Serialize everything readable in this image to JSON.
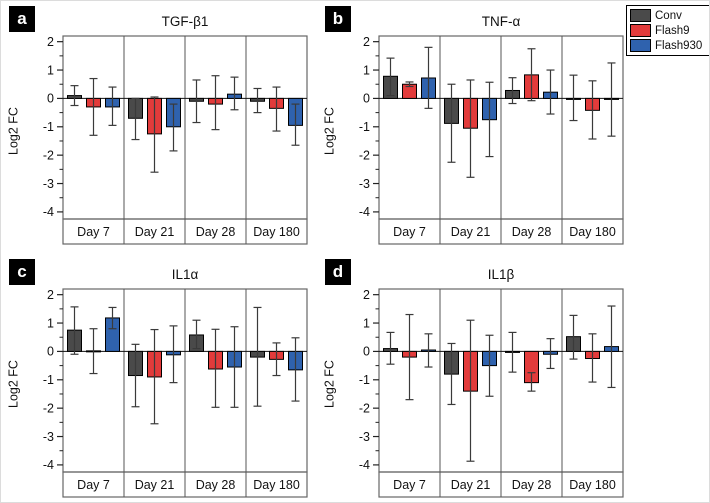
{
  "figure": {
    "background": "#ffffff",
    "legend": {
      "items": [
        {
          "label": "Conv",
          "color": "#4a4a4a"
        },
        {
          "label": "Flash9",
          "color": "#e23b3b"
        },
        {
          "label": "Flash930",
          "color": "#2f62ae"
        }
      ]
    }
  },
  "chart_data": [
    {
      "type": "bar",
      "panel_label": "a",
      "title": "TGF-β1",
      "ylabel": "Log2 FC",
      "ylim": [
        -4.25,
        2.2
      ],
      "yticks": [
        2,
        1,
        0,
        -1,
        -2,
        -3,
        -4
      ],
      "minor_yticks": [
        1.5,
        0.5,
        -0.5,
        -1.5,
        -2.5,
        -3.5
      ],
      "categories": [
        "Day 7",
        "Day 21",
        "Day 28",
        "Day 180"
      ],
      "grid": false,
      "series": [
        {
          "name": "Conv",
          "color": "#4a4a4a",
          "values": [
            0.1,
            -0.7,
            -0.1,
            -0.1
          ],
          "err_low": [
            -0.25,
            -1.45,
            -0.85,
            -0.5
          ],
          "err_high": [
            0.45,
            0.0,
            0.65,
            0.35
          ]
        },
        {
          "name": "Flash9",
          "color": "#e23b3b",
          "values": [
            -0.3,
            -1.25,
            -0.2,
            -0.35
          ],
          "err_low": [
            -1.3,
            -2.6,
            -1.1,
            -1.15
          ],
          "err_high": [
            0.7,
            0.05,
            0.8,
            0.4
          ]
        },
        {
          "name": "Flash930",
          "color": "#2f62ae",
          "values": [
            -0.3,
            -1.0,
            0.15,
            -0.95
          ],
          "err_low": [
            -0.95,
            -1.85,
            -0.4,
            -1.65
          ],
          "err_high": [
            0.4,
            -0.2,
            0.75,
            -0.2
          ]
        }
      ]
    },
    {
      "type": "bar",
      "panel_label": "b",
      "title": "TNF-α",
      "ylabel": "Log2 FC",
      "ylim": [
        -4.25,
        2.2
      ],
      "yticks": [
        2,
        1,
        0,
        -1,
        -2,
        -3,
        -4
      ],
      "minor_yticks": [
        1.5,
        0.5,
        -0.5,
        -1.5,
        -2.5,
        -3.5
      ],
      "categories": [
        "Day 7",
        "Day 21",
        "Day 28",
        "Day 180"
      ],
      "grid": false,
      "series": [
        {
          "name": "Conv",
          "color": "#4a4a4a",
          "values": [
            0.78,
            -0.88,
            0.28,
            0.0
          ],
          "err_low": [
            0.1,
            -2.25,
            -0.18,
            -0.78
          ],
          "err_high": [
            1.42,
            0.5,
            0.73,
            0.82
          ]
        },
        {
          "name": "Flash9",
          "color": "#e23b3b",
          "values": [
            0.5,
            -1.05,
            0.83,
            -0.42
          ],
          "err_low": [
            0.42,
            -2.78,
            -0.08,
            -1.43
          ],
          "err_high": [
            0.58,
            0.65,
            1.75,
            0.62
          ]
        },
        {
          "name": "Flash930",
          "color": "#2f62ae",
          "values": [
            0.72,
            -0.75,
            0.22,
            -0.03
          ],
          "err_low": [
            -0.35,
            -2.05,
            -0.55,
            -1.33
          ],
          "err_high": [
            1.8,
            0.57,
            1.0,
            1.25
          ]
        }
      ]
    },
    {
      "type": "bar",
      "panel_label": "c",
      "title": "IL1α",
      "ylabel": "Log2 FC",
      "ylim": [
        -4.25,
        2.2
      ],
      "yticks": [
        2,
        1,
        0,
        -1,
        -2,
        -3,
        -4
      ],
      "minor_yticks": [
        1.5,
        0.5,
        -0.5,
        -1.5,
        -2.5,
        -3.5
      ],
      "categories": [
        "Day 7",
        "Day 21",
        "Day 28",
        "Day 180"
      ],
      "grid": false,
      "series": [
        {
          "name": "Conv",
          "color": "#4a4a4a",
          "values": [
            0.75,
            -0.85,
            0.58,
            -0.2
          ],
          "err_low": [
            -0.1,
            -1.95,
            0.1,
            -1.93
          ],
          "err_high": [
            1.57,
            0.25,
            1.1,
            1.55
          ]
        },
        {
          "name": "Flash9",
          "color": "#e23b3b",
          "values": [
            0.02,
            -0.9,
            -0.62,
            -0.28
          ],
          "err_low": [
            -0.78,
            -2.55,
            -1.97,
            -0.85
          ],
          "err_high": [
            0.8,
            0.77,
            0.78,
            0.3
          ]
        },
        {
          "name": "Flash930",
          "color": "#2f62ae",
          "values": [
            1.18,
            -0.12,
            -0.55,
            -0.65
          ],
          "err_low": [
            0.8,
            -1.1,
            -1.97,
            -1.75
          ],
          "err_high": [
            1.55,
            0.9,
            0.87,
            0.48
          ]
        }
      ]
    },
    {
      "type": "bar",
      "panel_label": "d",
      "title": "IL1β",
      "ylabel": "Log2 FC",
      "ylim": [
        -4.25,
        2.2
      ],
      "yticks": [
        2,
        1,
        0,
        -1,
        -2,
        -3,
        -4
      ],
      "minor_yticks": [
        1.5,
        0.5,
        -0.5,
        -1.5,
        -2.5,
        -3.5
      ],
      "categories": [
        "Day 7",
        "Day 21",
        "Day 28",
        "Day 180"
      ],
      "grid": false,
      "series": [
        {
          "name": "Conv",
          "color": "#4a4a4a",
          "values": [
            0.1,
            -0.8,
            -0.02,
            0.52
          ],
          "err_low": [
            -0.45,
            -1.87,
            -0.73,
            -0.27
          ],
          "err_high": [
            0.67,
            0.28,
            0.67,
            1.27
          ]
        },
        {
          "name": "Flash9",
          "color": "#e23b3b",
          "values": [
            -0.2,
            -1.4,
            -1.1,
            -0.25
          ],
          "err_low": [
            -1.7,
            -3.87,
            -1.4,
            -1.08
          ],
          "err_high": [
            1.3,
            1.1,
            -0.75,
            0.62
          ]
        },
        {
          "name": "Flash930",
          "color": "#2f62ae",
          "values": [
            0.05,
            -0.5,
            -0.1,
            0.17
          ],
          "err_low": [
            -0.55,
            -1.58,
            -0.6,
            -1.27
          ],
          "err_high": [
            0.62,
            0.57,
            0.45,
            1.6
          ]
        }
      ]
    }
  ]
}
